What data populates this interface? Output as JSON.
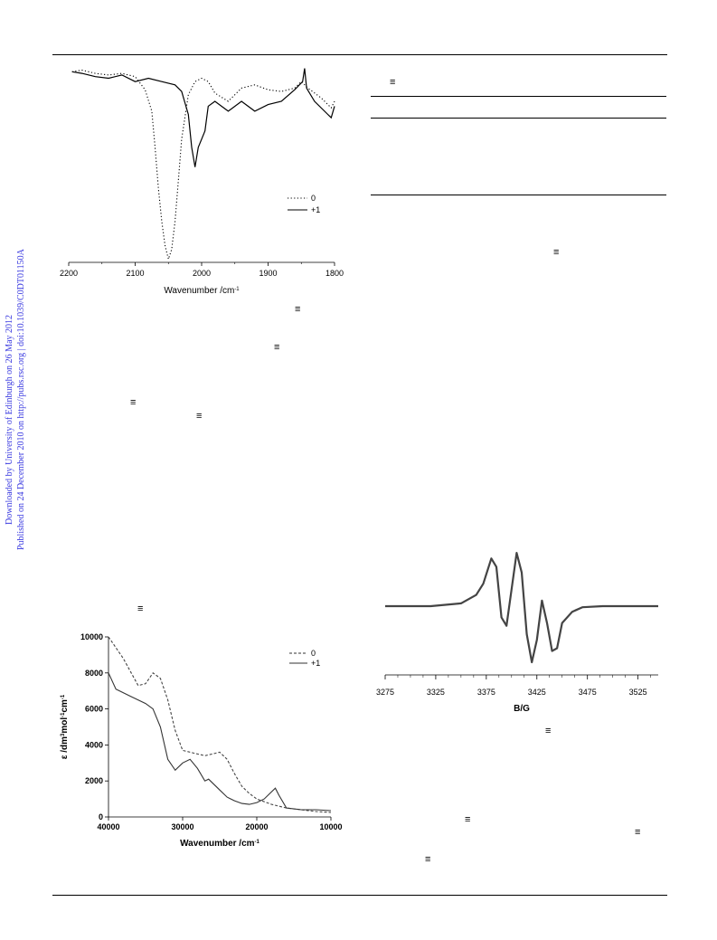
{
  "watermark": {
    "line1": "Downloaded by University of Edinburgh on 26 May 2012",
    "line2": "Published on 24 December 2010 on http://pubs.rsc.org | doi:10.1039/C0DT01150A"
  },
  "triple_bond_symbol": "≡",
  "chart_data": [
    {
      "type": "line",
      "xlabel": "Wavenumber /cm-1",
      "ylabel": "",
      "x_ticks": [
        2200,
        2100,
        2000,
        1900,
        1800
      ],
      "xlim": [
        2200,
        1800
      ],
      "series": [
        {
          "name": "0",
          "style": "dotted",
          "x": [
            2195,
            2180,
            2160,
            2140,
            2120,
            2100,
            2085,
            2075,
            2070,
            2065,
            2060,
            2055,
            2050,
            2045,
            2040,
            2035,
            2030,
            2020,
            2010,
            2000,
            1990,
            1980,
            1960,
            1940,
            1920,
            1900,
            1880,
            1860,
            1850,
            1840,
            1820,
            1805,
            1800
          ],
          "y": [
            0.96,
            0.97,
            0.95,
            0.94,
            0.95,
            0.93,
            0.85,
            0.72,
            0.5,
            0.25,
            0.05,
            -0.1,
            -0.18,
            -0.12,
            0.05,
            0.3,
            0.55,
            0.82,
            0.9,
            0.92,
            0.9,
            0.83,
            0.78,
            0.86,
            0.88,
            0.85,
            0.84,
            0.86,
            0.9,
            0.86,
            0.8,
            0.74,
            0.78
          ]
        },
        {
          "name": "+1",
          "style": "solid",
          "x": [
            2195,
            2180,
            2160,
            2140,
            2120,
            2100,
            2080,
            2060,
            2040,
            2030,
            2020,
            2015,
            2010,
            2005,
            2000,
            1995,
            1990,
            1980,
            1960,
            1940,
            1920,
            1900,
            1880,
            1860,
            1848,
            1845,
            1842,
            1830,
            1810,
            1805,
            1800
          ],
          "y": [
            0.96,
            0.95,
            0.93,
            0.92,
            0.94,
            0.9,
            0.92,
            0.9,
            0.88,
            0.84,
            0.7,
            0.5,
            0.38,
            0.5,
            0.55,
            0.6,
            0.75,
            0.78,
            0.72,
            0.78,
            0.72,
            0.76,
            0.78,
            0.85,
            0.9,
            0.98,
            0.86,
            0.78,
            0.7,
            0.68,
            0.75
          ]
        }
      ],
      "legend": [
        "0",
        "+1"
      ],
      "legend_position": "lower-right"
    },
    {
      "type": "line",
      "xlabel": "Wavenumber /cm-1",
      "ylabel": "ε /dm3mol-1cm-1",
      "x_ticks": [
        40000,
        30000,
        20000,
        10000
      ],
      "y_ticks": [
        0,
        2000,
        4000,
        6000,
        8000,
        10000
      ],
      "xlim": [
        40000,
        10000
      ],
      "ylim": [
        0,
        10000
      ],
      "series": [
        {
          "name": "0",
          "style": "dashed",
          "x": [
            40000,
            38000,
            36000,
            35000,
            34000,
            33000,
            32000,
            31000,
            30000,
            29000,
            28000,
            27000,
            26000,
            25000,
            24000,
            23000,
            22000,
            21000,
            20000,
            18000,
            16000,
            14000,
            12000,
            10000
          ],
          "y": [
            10000,
            8800,
            7300,
            7400,
            8000,
            7700,
            6500,
            4800,
            3700,
            3600,
            3500,
            3400,
            3500,
            3600,
            3200,
            2400,
            1700,
            1300,
            1000,
            700,
            500,
            400,
            300,
            250
          ]
        },
        {
          "name": "+1",
          "style": "solid",
          "x": [
            40000,
            39000,
            37000,
            35000,
            34000,
            33000,
            32000,
            31000,
            30000,
            29000,
            28000,
            27000,
            26500,
            26000,
            25000,
            24000,
            23000,
            22000,
            21000,
            20000,
            19000,
            18000,
            17500,
            17000,
            16000,
            14000,
            12000,
            10000
          ],
          "y": [
            8000,
            7100,
            6700,
            6300,
            6000,
            5000,
            3200,
            2600,
            3000,
            3200,
            2700,
            2000,
            2100,
            1900,
            1500,
            1100,
            900,
            750,
            700,
            800,
            1000,
            1400,
            1600,
            1200,
            500,
            400,
            400,
            350
          ]
        }
      ],
      "legend": [
        "0",
        "+1"
      ],
      "legend_position": "top-right"
    },
    {
      "type": "line",
      "xlabel": "B/G",
      "ylabel": "",
      "x_ticks": [
        3275,
        3325,
        3375,
        3425,
        3475,
        3525
      ],
      "xlim": [
        3275,
        3545
      ],
      "series": [
        {
          "name": "",
          "x": [
            3275,
            3320,
            3350,
            3365,
            3372,
            3380,
            3385,
            3390,
            3395,
            3400,
            3405,
            3410,
            3415,
            3420,
            3425,
            3430,
            3435,
            3440,
            3445,
            3450,
            3460,
            3470,
            3490,
            3520,
            3545
          ],
          "y": [
            0,
            0.0,
            0.05,
            0.2,
            0.4,
            0.85,
            0.7,
            -0.2,
            -0.35,
            0.3,
            0.95,
            0.6,
            -0.5,
            -1.0,
            -0.6,
            0.1,
            -0.3,
            -0.8,
            -0.75,
            -0.3,
            -0.1,
            -0.02,
            0,
            0,
            0
          ]
        }
      ]
    }
  ]
}
